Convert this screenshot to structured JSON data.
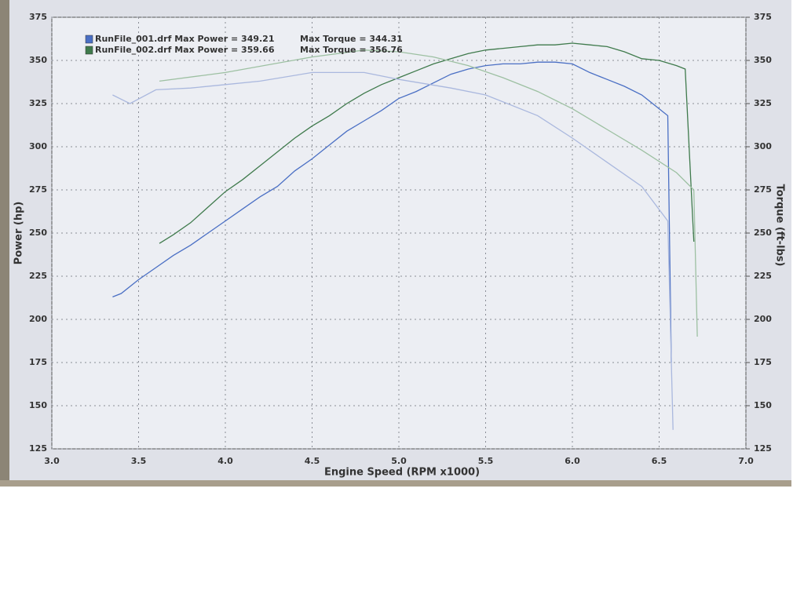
{
  "chart_data": {
    "type": "line",
    "xlabel": "Engine Speed (RPM x1000)",
    "ylabel": "Power (hp)",
    "y2label": "Torque (ft-lbs)",
    "xlim": [
      3,
      7
    ],
    "xticks": [
      {
        "value": 3,
        "label": "3.0"
      },
      3.5,
      {
        "value": 4,
        "label": "4.0"
      },
      4.5,
      {
        "value": 5,
        "label": "5.0"
      },
      5.5,
      {
        "value": 6,
        "label": "6.0"
      },
      6.5,
      {
        "value": 7,
        "label": "7.0"
      }
    ],
    "ylim": [
      125,
      375
    ],
    "yticks": [
      125,
      150,
      175,
      200,
      225,
      250,
      275,
      300,
      325,
      350,
      375
    ],
    "y2lim": [
      125,
      375
    ],
    "y2ticks": [
      125,
      150,
      175,
      200,
      225,
      250,
      275,
      300,
      325,
      350,
      375
    ],
    "grid": true,
    "series": [
      {
        "name": "RunFile_001.drf Max Power = 349.21",
        "color": "#4a6fc4",
        "x": [
          3.35,
          3.4,
          3.5,
          3.6,
          3.7,
          3.8,
          3.9,
          4.0,
          4.1,
          4.2,
          4.3,
          4.4,
          4.5,
          4.6,
          4.7,
          4.8,
          4.9,
          5.0,
          5.1,
          5.2,
          5.3,
          5.4,
          5.5,
          5.6,
          5.7,
          5.8,
          5.9,
          6.0,
          6.1,
          6.2,
          6.3,
          6.4,
          6.5,
          6.55,
          6.57
        ],
        "values": [
          213,
          215,
          223,
          230,
          237,
          243,
          250,
          257,
          264,
          271,
          277,
          286,
          293,
          301,
          309,
          315,
          321,
          328,
          332,
          337,
          342,
          345,
          347,
          348,
          348,
          349,
          349,
          348,
          343,
          339,
          335,
          330,
          322,
          318,
          175
        ]
      },
      {
        "name": "RunFile_002.drf Max Power = 359.66",
        "color": "#3f7a4c",
        "x": [
          3.62,
          3.7,
          3.8,
          3.9,
          4.0,
          4.1,
          4.2,
          4.3,
          4.4,
          4.5,
          4.6,
          4.7,
          4.8,
          4.9,
          5.0,
          5.1,
          5.2,
          5.3,
          5.4,
          5.5,
          5.6,
          5.7,
          5.8,
          5.9,
          6.0,
          6.1,
          6.2,
          6.3,
          6.4,
          6.5,
          6.6,
          6.65,
          6.7
        ],
        "values": [
          244,
          249,
          256,
          265,
          274,
          281,
          289,
          297,
          305,
          312,
          318,
          325,
          331,
          336,
          340,
          344,
          348,
          351,
          354,
          356,
          357,
          358,
          359,
          359,
          360,
          359,
          358,
          355,
          351,
          350,
          347,
          345,
          245
        ]
      },
      {
        "name": "Max Torque = 344.31",
        "color": "#aab8de",
        "axis": "y2",
        "x": [
          3.35,
          3.45,
          3.6,
          3.8,
          4.0,
          4.2,
          4.5,
          4.8,
          5.0,
          5.3,
          5.5,
          5.8,
          6.0,
          6.2,
          6.4,
          6.55,
          6.58
        ],
        "values": [
          330,
          325,
          333,
          334,
          336,
          338,
          343,
          343,
          339,
          334,
          330,
          318,
          305,
          291,
          277,
          257,
          136
        ]
      },
      {
        "name": "Max Torque = 356.76",
        "color": "#9dc0a2",
        "axis": "y2",
        "x": [
          3.62,
          4.0,
          4.5,
          4.8,
          5.0,
          5.2,
          5.4,
          5.6,
          5.8,
          6.0,
          6.2,
          6.4,
          6.6,
          6.7,
          6.72
        ],
        "values": [
          338,
          343,
          352,
          356,
          355,
          352,
          347,
          340,
          332,
          322,
          310,
          298,
          285,
          275,
          190
        ]
      }
    ]
  }
}
